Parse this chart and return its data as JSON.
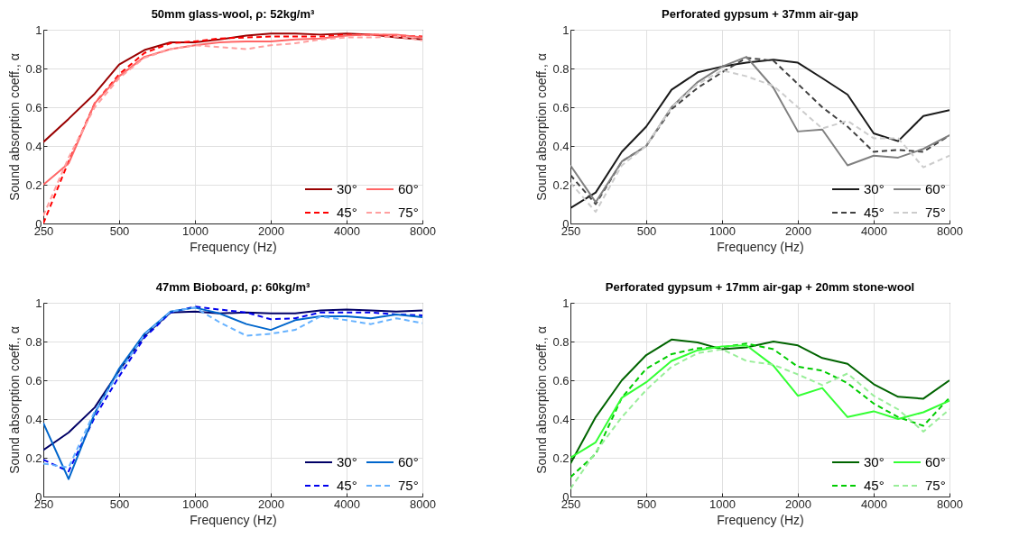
{
  "chart_data": [
    {
      "type": "line",
      "log": "x",
      "title": "50mm glass-wool, ρ: 52kg/m³",
      "xlabel": "Frequency (Hz)",
      "ylabel": "Sound absorption coeff., α",
      "x": [
        250,
        315,
        400,
        500,
        630,
        800,
        1000,
        1250,
        1600,
        2000,
        2500,
        3150,
        4000,
        5000,
        6300,
        8000
      ],
      "xlim": [
        250,
        8000
      ],
      "xticks": [
        250,
        500,
        1000,
        2000,
        4000,
        8000
      ],
      "ylim": [
        0,
        1
      ],
      "yticks": [
        0,
        0.2,
        0.4,
        0.6,
        0.8,
        1
      ],
      "grid": true,
      "legend": "bottom right",
      "series": [
        {
          "name": "30°",
          "color": "#990000",
          "line_style": "solid",
          "values": [
            0.42,
            0.54,
            0.67,
            0.82,
            0.895,
            0.935,
            0.935,
            0.95,
            0.97,
            0.98,
            0.98,
            0.975,
            0.98,
            0.975,
            0.96,
            0.95
          ]
        },
        {
          "name": "45°",
          "color": "#ff0000",
          "line_style": "dashed",
          "values": [
            0.0,
            0.32,
            0.62,
            0.77,
            0.88,
            0.93,
            0.94,
            0.955,
            0.96,
            0.965,
            0.965,
            0.965,
            0.975,
            0.975,
            0.97,
            0.965
          ]
        },
        {
          "name": "60°",
          "color": "#ff6666",
          "line_style": "solid",
          "values": [
            0.2,
            0.31,
            0.62,
            0.76,
            0.86,
            0.9,
            0.92,
            0.935,
            0.94,
            0.94,
            0.95,
            0.955,
            0.97,
            0.975,
            0.975,
            0.96
          ]
        },
        {
          "name": "75°",
          "color": "#ff9f9f",
          "line_style": "dashed",
          "values": [
            0.04,
            0.34,
            0.6,
            0.75,
            0.855,
            0.9,
            0.92,
            0.91,
            0.9,
            0.92,
            0.93,
            0.95,
            0.96,
            0.96,
            0.965,
            0.945
          ]
        }
      ]
    },
    {
      "type": "line",
      "log": "x",
      "title": "Perforated gypsum + 37mm air-gap",
      "xlabel": "Frequency (Hz)",
      "ylabel": "Sound absorption coeff., α",
      "x": [
        250,
        315,
        400,
        500,
        630,
        800,
        1000,
        1250,
        1600,
        2000,
        2500,
        3150,
        4000,
        5000,
        6300,
        8000
      ],
      "xlim": [
        250,
        8000
      ],
      "xticks": [
        250,
        500,
        1000,
        2000,
        4000,
        8000
      ],
      "ylim": [
        0,
        1
      ],
      "yticks": [
        0,
        0.2,
        0.4,
        0.6,
        0.8,
        1
      ],
      "grid": true,
      "legend": "bottom right",
      "series": [
        {
          "name": "30°",
          "color": "#1a1a1a",
          "line_style": "solid",
          "values": [
            0.08,
            0.16,
            0.37,
            0.5,
            0.69,
            0.78,
            0.81,
            0.83,
            0.845,
            0.83,
            0.75,
            0.665,
            0.465,
            0.425,
            0.555,
            0.585
          ]
        },
        {
          "name": "45°",
          "color": "#404040",
          "line_style": "dashed",
          "values": [
            0.25,
            0.1,
            0.32,
            0.4,
            0.59,
            0.7,
            0.78,
            0.855,
            0.84,
            0.72,
            0.6,
            0.5,
            0.37,
            0.38,
            0.37,
            0.455
          ]
        },
        {
          "name": "60°",
          "color": "#808080",
          "line_style": "solid",
          "values": [
            0.3,
            0.11,
            0.32,
            0.4,
            0.6,
            0.73,
            0.81,
            0.86,
            0.7,
            0.475,
            0.485,
            0.3,
            0.35,
            0.34,
            0.385,
            0.455
          ]
        },
        {
          "name": "75°",
          "color": "#cccccc",
          "line_style": "dashed",
          "values": [
            0.21,
            0.06,
            0.3,
            0.4,
            0.6,
            0.72,
            0.79,
            0.76,
            0.71,
            0.6,
            0.49,
            0.53,
            0.44,
            0.44,
            0.29,
            0.35
          ]
        }
      ]
    },
    {
      "type": "line",
      "log": "x",
      "title": "47mm Bioboard, ρ: 60kg/m³",
      "xlabel": "Frequency (Hz)",
      "ylabel": "Sound absorption coeff., α",
      "x": [
        250,
        315,
        400,
        500,
        630,
        800,
        1000,
        1250,
        1600,
        2000,
        2500,
        3150,
        4000,
        5000,
        6300,
        8000
      ],
      "xlim": [
        250,
        8000
      ],
      "xticks": [
        250,
        500,
        1000,
        2000,
        4000,
        8000
      ],
      "ylim": [
        0,
        1
      ],
      "yticks": [
        0,
        0.2,
        0.4,
        0.6,
        0.8,
        1
      ],
      "grid": true,
      "legend": "bottom right",
      "series": [
        {
          "name": "30°",
          "color": "#000066",
          "line_style": "solid",
          "values": [
            0.24,
            0.33,
            0.46,
            0.65,
            0.83,
            0.95,
            0.955,
            0.945,
            0.95,
            0.945,
            0.945,
            0.96,
            0.965,
            0.96,
            0.955,
            0.96
          ]
        },
        {
          "name": "45°",
          "color": "#0000ee",
          "line_style": "dashed",
          "values": [
            0.19,
            0.13,
            0.41,
            0.62,
            0.82,
            0.95,
            0.98,
            0.965,
            0.95,
            0.915,
            0.92,
            0.95,
            0.95,
            0.95,
            0.94,
            0.935
          ]
        },
        {
          "name": "60°",
          "color": "#0066cc",
          "line_style": "solid",
          "values": [
            0.38,
            0.09,
            0.43,
            0.66,
            0.84,
            0.955,
            0.975,
            0.945,
            0.89,
            0.86,
            0.91,
            0.93,
            0.93,
            0.92,
            0.94,
            0.925
          ]
        },
        {
          "name": "75°",
          "color": "#66b2ff",
          "line_style": "dashed",
          "values": [
            0.17,
            0.15,
            0.44,
            0.64,
            0.835,
            0.955,
            0.975,
            0.9,
            0.83,
            0.84,
            0.86,
            0.93,
            0.91,
            0.89,
            0.92,
            0.895
          ]
        }
      ]
    },
    {
      "type": "line",
      "log": "x",
      "title": "Perforated gypsum + 17mm air-gap + 20mm stone-wool",
      "xlabel": "Frequency (Hz)",
      "ylabel": "Sound absorption coeff., α",
      "x": [
        250,
        315,
        400,
        500,
        630,
        800,
        1000,
        1250,
        1600,
        2000,
        2500,
        3150,
        4000,
        5000,
        6300,
        8000
      ],
      "xlim": [
        250,
        8000
      ],
      "xticks": [
        250,
        500,
        1000,
        2000,
        4000,
        8000
      ],
      "ylim": [
        0,
        1
      ],
      "yticks": [
        0,
        0.2,
        0.4,
        0.6,
        0.8,
        1
      ],
      "grid": true,
      "legend": "bottom right",
      "series": [
        {
          "name": "30°",
          "color": "#006400",
          "line_style": "solid",
          "values": [
            0.17,
            0.41,
            0.6,
            0.73,
            0.81,
            0.795,
            0.76,
            0.77,
            0.8,
            0.78,
            0.715,
            0.685,
            0.58,
            0.515,
            0.505,
            0.6
          ]
        },
        {
          "name": "45°",
          "color": "#00cc00",
          "line_style": "dashed",
          "values": [
            0.1,
            0.22,
            0.51,
            0.66,
            0.735,
            0.765,
            0.77,
            0.79,
            0.76,
            0.67,
            0.65,
            0.585,
            0.48,
            0.41,
            0.365,
            0.51
          ]
        },
        {
          "name": "60°",
          "color": "#33ff33",
          "line_style": "solid",
          "values": [
            0.2,
            0.28,
            0.51,
            0.59,
            0.7,
            0.755,
            0.775,
            0.78,
            0.675,
            0.52,
            0.56,
            0.41,
            0.44,
            0.4,
            0.435,
            0.495
          ]
        },
        {
          "name": "75°",
          "color": "#99ee99",
          "line_style": "dashed",
          "values": [
            0.04,
            0.23,
            0.41,
            0.55,
            0.67,
            0.74,
            0.76,
            0.7,
            0.68,
            0.63,
            0.575,
            0.635,
            0.52,
            0.45,
            0.335,
            0.45
          ]
        }
      ]
    }
  ]
}
